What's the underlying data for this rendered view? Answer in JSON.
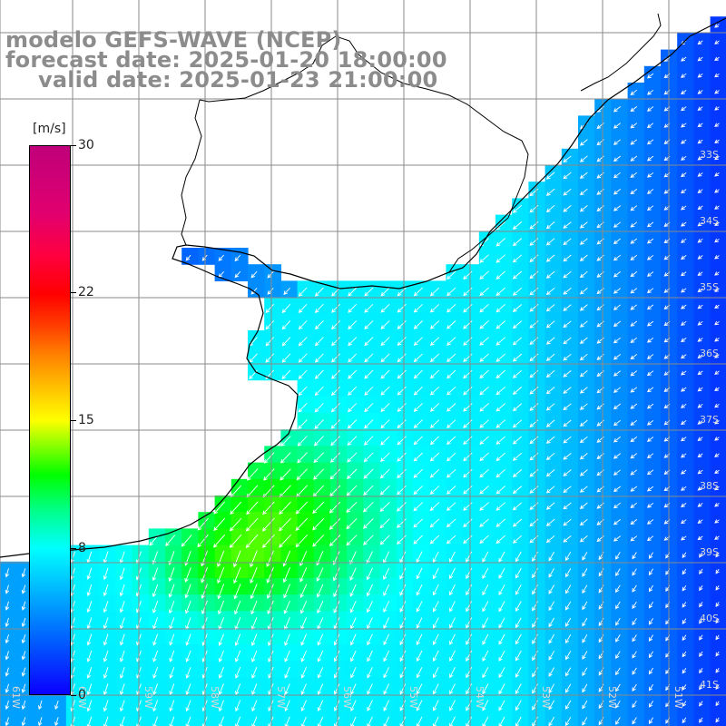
{
  "title": {
    "model": "modelo GEFS-WAVE (NCEP)",
    "forecast": "forecast date: 2025-01-20 18:00:00",
    "valid": "valid date: 2025-01-23 21:00:00"
  },
  "colorbar": {
    "unit": "[m/s]",
    "ticks": [
      {
        "label": "30",
        "value": 30
      },
      {
        "label": "22",
        "value": 22
      },
      {
        "label": "15",
        "value": 15
      },
      {
        "label": "8",
        "value": 8
      },
      {
        "label": "0",
        "value": 0
      }
    ],
    "range": [
      0,
      30
    ]
  },
  "axes": {
    "lat_labels": [
      "33S",
      "34S",
      "35S",
      "36S",
      "37S",
      "38S",
      "39S",
      "40S",
      "41S"
    ],
    "lon_labels": [
      "61W",
      "60W",
      "59W",
      "58W",
      "57W",
      "56W",
      "55W",
      "54W",
      "53W",
      "52W",
      "51W"
    ]
  },
  "colors": {
    "grid": "#8a8a8a",
    "coast": "#000000",
    "title": "#8c8c8c",
    "arrow": "#ffffff"
  }
}
